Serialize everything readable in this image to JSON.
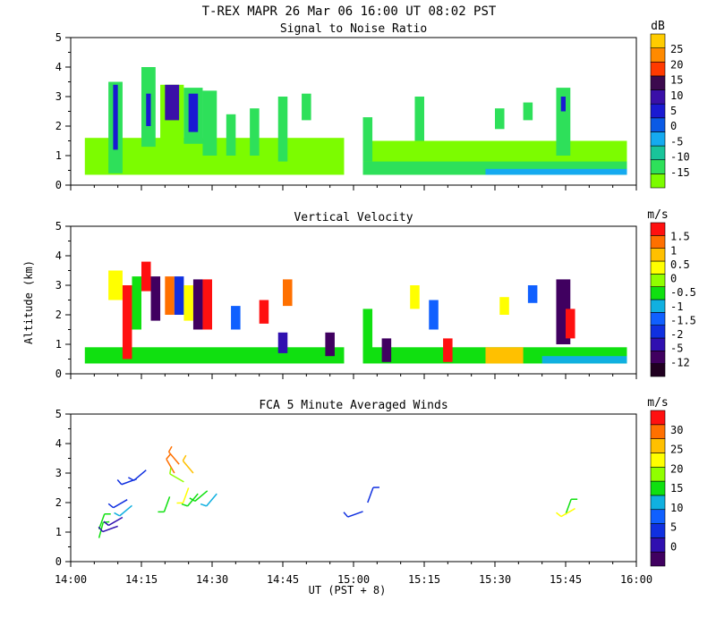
{
  "chart_data": {
    "type": "heatmap",
    "title": "T-REX   MAPR 26 Mar 06   16:00 UT   08:02   PST",
    "xlabel": "UT  (PST + 8)",
    "xticks": [
      "14:00",
      "14:15",
      "14:30",
      "14:45",
      "15:00",
      "15:15",
      "15:30",
      "15:45",
      "16:00"
    ],
    "xlim_minutes": [
      0,
      120
    ],
    "panels": [
      {
        "title": "Signal to Noise Ratio",
        "ylabel": "",
        "ylim": [
          0,
          5
        ],
        "yticks": [
          "0",
          "1",
          "2",
          "3",
          "4",
          "5"
        ],
        "colorbar_unit": "dB",
        "colorbar_colors": [
          "#7cfc00",
          "#2ee05a",
          "#19c49a",
          "#15aaf0",
          "#0a5ae6",
          "#1a1ad2",
          "#3a10a8",
          "#3c0a4e",
          "#ff3a00",
          "#ff8a00",
          "#ffcc00"
        ],
        "colorbar_labels": [
          "-15",
          "-10",
          "-5",
          "0",
          "5",
          "10",
          "15",
          "20",
          "25"
        ],
        "data_blocks": [
          {
            "t0": 3,
            "t1": 58,
            "z0": 0.35,
            "z1": 1.6,
            "color": "#7cfc00"
          },
          {
            "t0": 62,
            "t1": 118,
            "z0": 0.35,
            "z1": 1.5,
            "color": "#7cfc00"
          },
          {
            "t0": 62,
            "t1": 118,
            "z0": 0.35,
            "z1": 0.8,
            "color": "#2ee05a"
          },
          {
            "t0": 88,
            "t1": 118,
            "z0": 0.35,
            "z1": 0.55,
            "color": "#15aaf0"
          },
          {
            "t0": 8,
            "t1": 11,
            "z0": 0.4,
            "z1": 3.5,
            "color": "#2ee05a"
          },
          {
            "t0": 9,
            "t1": 10,
            "z0": 1.2,
            "z1": 3.4,
            "color": "#1a1ad2"
          },
          {
            "t0": 15,
            "t1": 18,
            "z0": 1.3,
            "z1": 4.0,
            "color": "#2ee05a"
          },
          {
            "t0": 16,
            "t1": 17,
            "z0": 2.0,
            "z1": 3.1,
            "color": "#1a1ad2"
          },
          {
            "t0": 19,
            "t1": 24,
            "z0": 1.5,
            "z1": 3.4,
            "color": "#7cfc00"
          },
          {
            "t0": 20,
            "t1": 23,
            "z0": 2.2,
            "z1": 3.4,
            "color": "#3a10a8"
          },
          {
            "t0": 24,
            "t1": 28,
            "z0": 1.4,
            "z1": 3.3,
            "color": "#2ee05a"
          },
          {
            "t0": 25,
            "t1": 27,
            "z0": 1.8,
            "z1": 3.1,
            "color": "#1a1ad2"
          },
          {
            "t0": 28,
            "t1": 31,
            "z0": 1.0,
            "z1": 3.2,
            "color": "#2ee05a"
          },
          {
            "t0": 33,
            "t1": 35,
            "z0": 1.0,
            "z1": 2.4,
            "color": "#2ee05a"
          },
          {
            "t0": 38,
            "t1": 40,
            "z0": 1.0,
            "z1": 2.6,
            "color": "#2ee05a"
          },
          {
            "t0": 44,
            "t1": 46,
            "z0": 0.8,
            "z1": 3.0,
            "color": "#2ee05a"
          },
          {
            "t0": 49,
            "t1": 51,
            "z0": 2.2,
            "z1": 3.1,
            "color": "#2ee05a"
          },
          {
            "t0": 62,
            "t1": 64,
            "z0": 0.8,
            "z1": 2.3,
            "color": "#2ee05a"
          },
          {
            "t0": 73,
            "t1": 75,
            "z0": 1.5,
            "z1": 3.0,
            "color": "#2ee05a"
          },
          {
            "t0": 90,
            "t1": 92,
            "z0": 1.9,
            "z1": 2.6,
            "color": "#2ee05a"
          },
          {
            "t0": 96,
            "t1": 98,
            "z0": 2.2,
            "z1": 2.8,
            "color": "#2ee05a"
          },
          {
            "t0": 103,
            "t1": 106,
            "z0": 1.0,
            "z1": 3.3,
            "color": "#2ee05a"
          },
          {
            "t0": 104,
            "t1": 105,
            "z0": 2.5,
            "z1": 3.0,
            "color": "#1a1ad2"
          }
        ]
      },
      {
        "title": "Vertical Velocity",
        "ylabel": "Altitude (km)",
        "ylim": [
          0,
          5
        ],
        "yticks": [
          "0",
          "1",
          "2",
          "3",
          "4",
          "5"
        ],
        "colorbar_unit": "m/s",
        "colorbar_colors": [
          "#200020",
          "#400060",
          "#3010b0",
          "#1030e0",
          "#1060ff",
          "#10b0e0",
          "#10e010",
          "#90ff00",
          "#ffff00",
          "#ffc000",
          "#ff7000",
          "#ff1010"
        ],
        "colorbar_labels": [
          "-12",
          "-5",
          "-2",
          "-1.5",
          "-1",
          "-0.5",
          "0",
          "0.5",
          "1",
          "1.5"
        ],
        "data_blocks": [
          {
            "t0": 3,
            "t1": 58,
            "z0": 0.35,
            "z1": 0.9,
            "color": "#10e010"
          },
          {
            "t0": 62,
            "t1": 118,
            "z0": 0.35,
            "z1": 0.9,
            "color": "#10e010"
          },
          {
            "t0": 88,
            "t1": 96,
            "z0": 0.35,
            "z1": 0.9,
            "color": "#ffc000"
          },
          {
            "t0": 100,
            "t1": 118,
            "z0": 0.35,
            "z1": 0.6,
            "color": "#10b0e0"
          },
          {
            "t0": 8,
            "t1": 11,
            "z0": 2.5,
            "z1": 3.5,
            "color": "#ffff00"
          },
          {
            "t0": 11,
            "t1": 13,
            "z0": 0.5,
            "z1": 3.0,
            "color": "#ff1010"
          },
          {
            "t0": 13,
            "t1": 15,
            "z0": 1.5,
            "z1": 3.3,
            "color": "#10e010"
          },
          {
            "t0": 15,
            "t1": 17,
            "z0": 2.8,
            "z1": 3.8,
            "color": "#ff1010"
          },
          {
            "t0": 17,
            "t1": 19,
            "z0": 1.8,
            "z1": 3.3,
            "color": "#400060"
          },
          {
            "t0": 20,
            "t1": 22,
            "z0": 2.0,
            "z1": 3.3,
            "color": "#ff7000"
          },
          {
            "t0": 22,
            "t1": 24,
            "z0": 2.0,
            "z1": 3.3,
            "color": "#1030e0"
          },
          {
            "t0": 24,
            "t1": 26,
            "z0": 1.8,
            "z1": 3.0,
            "color": "#ffff00"
          },
          {
            "t0": 26,
            "t1": 28,
            "z0": 1.5,
            "z1": 3.2,
            "color": "#400060"
          },
          {
            "t0": 28,
            "t1": 30,
            "z0": 1.5,
            "z1": 3.2,
            "color": "#ff1010"
          },
          {
            "t0": 34,
            "t1": 36,
            "z0": 1.5,
            "z1": 2.3,
            "color": "#1060ff"
          },
          {
            "t0": 40,
            "t1": 42,
            "z0": 1.7,
            "z1": 2.5,
            "color": "#ff1010"
          },
          {
            "t0": 44,
            "t1": 46,
            "z0": 0.7,
            "z1": 1.4,
            "color": "#3010b0"
          },
          {
            "t0": 45,
            "t1": 47,
            "z0": 2.3,
            "z1": 3.2,
            "color": "#ff7000"
          },
          {
            "t0": 54,
            "t1": 56,
            "z0": 0.6,
            "z1": 1.4,
            "color": "#400060"
          },
          {
            "t0": 62,
            "t1": 64,
            "z0": 0.5,
            "z1": 2.2,
            "color": "#10e010"
          },
          {
            "t0": 66,
            "t1": 68,
            "z0": 0.4,
            "z1": 1.2,
            "color": "#400060"
          },
          {
            "t0": 72,
            "t1": 74,
            "z0": 2.2,
            "z1": 3.0,
            "color": "#ffff00"
          },
          {
            "t0": 76,
            "t1": 78,
            "z0": 1.5,
            "z1": 2.5,
            "color": "#1060ff"
          },
          {
            "t0": 79,
            "t1": 81,
            "z0": 0.4,
            "z1": 1.2,
            "color": "#ff1010"
          },
          {
            "t0": 91,
            "t1": 93,
            "z0": 2.0,
            "z1": 2.6,
            "color": "#ffff00"
          },
          {
            "t0": 97,
            "t1": 99,
            "z0": 2.4,
            "z1": 3.0,
            "color": "#1060ff"
          },
          {
            "t0": 103,
            "t1": 106,
            "z0": 1.0,
            "z1": 3.2,
            "color": "#400060"
          },
          {
            "t0": 105,
            "t1": 107,
            "z0": 1.2,
            "z1": 2.2,
            "color": "#ff1010"
          }
        ]
      },
      {
        "title": "FCA 5 Minute Averaged Winds",
        "ylabel": "",
        "ylim": [
          0,
          5
        ],
        "yticks": [
          "0",
          "1",
          "2",
          "3",
          "4",
          "5"
        ],
        "colorbar_unit": "m/s",
        "colorbar_colors": [
          "#400060",
          "#3010b0",
          "#1030e0",
          "#1060ff",
          "#10b0e0",
          "#10e010",
          "#90ff00",
          "#ffff00",
          "#ffc000",
          "#ff7000",
          "#ff1010"
        ],
        "colorbar_labels": [
          "0",
          "5",
          "10",
          "15",
          "20",
          "25",
          "30"
        ],
        "barbs": [
          {
            "t": 6,
            "z": 1.1,
            "dir": 20,
            "color": "#10e010"
          },
          {
            "t": 6,
            "z": 0.8,
            "dir": 15,
            "color": "#10e010"
          },
          {
            "t": 10,
            "z": 1.2,
            "dir": 250,
            "color": "#3010b0"
          },
          {
            "t": 11,
            "z": 1.5,
            "dir": 240,
            "color": "#3010b0"
          },
          {
            "t": 12,
            "z": 2.1,
            "dir": 240,
            "color": "#1030e0"
          },
          {
            "t": 13,
            "z": 1.9,
            "dir": 230,
            "color": "#10b0e0"
          },
          {
            "t": 14,
            "z": 2.8,
            "dir": 250,
            "color": "#1030e0"
          },
          {
            "t": 16,
            "z": 3.1,
            "dir": 230,
            "color": "#1030e0"
          },
          {
            "t": 21,
            "z": 2.2,
            "dir": 200,
            "color": "#10e010"
          },
          {
            "t": 22,
            "z": 3.0,
            "dir": 330,
            "color": "#ff7000"
          },
          {
            "t": 23,
            "z": 3.3,
            "dir": 320,
            "color": "#ff7000"
          },
          {
            "t": 24,
            "z": 2.7,
            "dir": 300,
            "color": "#90ff00"
          },
          {
            "t": 25,
            "z": 2.5,
            "dir": 200,
            "color": "#ffff00"
          },
          {
            "t": 26,
            "z": 3.0,
            "dir": 320,
            "color": "#ffc000"
          },
          {
            "t": 27,
            "z": 2.3,
            "dir": 220,
            "color": "#10e010"
          },
          {
            "t": 29,
            "z": 2.4,
            "dir": 230,
            "color": "#10e010"
          },
          {
            "t": 31,
            "z": 2.3,
            "dir": 220,
            "color": "#10b0e0"
          },
          {
            "t": 62,
            "z": 1.7,
            "dir": 250,
            "color": "#1030e0"
          },
          {
            "t": 63,
            "z": 2.0,
            "dir": 20,
            "color": "#1030e0"
          },
          {
            "t": 105,
            "z": 1.6,
            "dir": 20,
            "color": "#10e010"
          },
          {
            "t": 107,
            "z": 1.8,
            "dir": 240,
            "color": "#ffff00"
          }
        ]
      }
    ]
  }
}
